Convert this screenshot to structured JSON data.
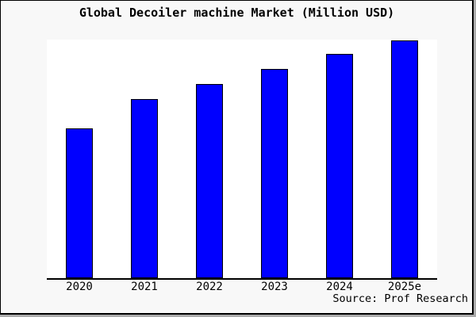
{
  "title": "Global Decoiler machine Market (Million USD)",
  "source": "Source: Prof Research",
  "colors": {
    "figure_background": "#f8f8f8",
    "plot_background": "#ffffff",
    "bar_fill": "#0000ff",
    "bar_border": "#000000",
    "axis_line": "#000000",
    "frame_border": "#000000",
    "text": "#000000"
  },
  "chart_data": {
    "type": "bar",
    "title": "Global Decoiler machine Market (Million USD)",
    "categories": [
      "2020",
      "2021",
      "2022",
      "2023",
      "2024",
      "2025e"
    ],
    "values": [
      62.9,
      75.2,
      81.5,
      87.9,
      94.2,
      100
    ],
    "xlabel": "",
    "ylabel": "",
    "ylim": [
      0,
      100
    ],
    "y_axis_visible": false,
    "grid": false,
    "legend": "none",
    "bar_color": "#0000ff",
    "bar_border_color": "#000000",
    "note": "No y-axis scale is shown in the chart; values are relative heights as a percentage of the tallest bar (2025e = 100)."
  }
}
